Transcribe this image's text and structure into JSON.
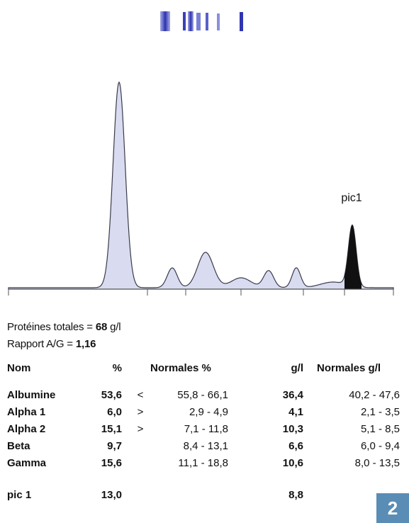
{
  "chart_data": {
    "type": "area",
    "annotation": "pic1",
    "peaks": [
      {
        "name": "Albumine",
        "percent": 53.6
      },
      {
        "name": "Alpha 1",
        "percent": 6.0
      },
      {
        "name": "Alpha 2",
        "percent": 15.1
      },
      {
        "name": "Beta",
        "percent": 9.7
      },
      {
        "name": "Gamma",
        "percent": 15.6
      },
      {
        "name": "pic 1",
        "percent": 13.0
      }
    ],
    "fill_color": "#d9dcf0",
    "line_color": "#3a3a4a",
    "highlight_color": "#111111"
  },
  "summary": {
    "total_label": "Protéines totales =",
    "total_value": "68",
    "total_unit": "g/l",
    "ratio_label": "Rapport A/G =",
    "ratio_value": "1,16"
  },
  "table": {
    "headers": {
      "name": "Nom",
      "percent": "%",
      "norm_percent": "Normales %",
      "gl": "g/l",
      "norm_gl": "Normales g/l"
    },
    "rows": [
      {
        "name": "Albumine",
        "percent": "53,6",
        "flag": "<",
        "norm_percent": "55,8 - 66,1",
        "gl": "36,4",
        "norm_gl": "40,2 -  47,6"
      },
      {
        "name": "Alpha 1",
        "percent": "6,0",
        "flag": ">",
        "norm_percent": "2,9 -  4,9",
        "gl": "4,1",
        "norm_gl": "2,1 -  3,5"
      },
      {
        "name": "Alpha 2",
        "percent": "15,1",
        "flag": ">",
        "norm_percent": "7,1 - 11,8",
        "gl": "10,3",
        "norm_gl": "5,1 -  8,5"
      },
      {
        "name": "Beta",
        "percent": "9,7",
        "flag": "",
        "norm_percent": "8,4 - 13,1",
        "gl": "6,6",
        "norm_gl": "6,0 -  9,4"
      },
      {
        "name": "Gamma",
        "percent": "15,6",
        "flag": "",
        "norm_percent": "11,1 - 18,8",
        "gl": "10,6",
        "norm_gl": "8,0 - 13,5"
      },
      {
        "name": "pic 1",
        "percent": "13,0",
        "flag": "",
        "norm_percent": "",
        "gl": "8,8",
        "norm_gl": ""
      }
    ]
  },
  "badge": {
    "label": "2"
  }
}
